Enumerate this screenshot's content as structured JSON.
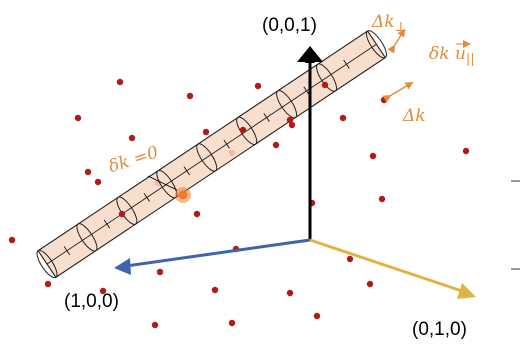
{
  "labels": {
    "axis_z": "(0,0,1)",
    "axis_x": "(1,0,0)",
    "axis_y": "(0,1,0)",
    "delta_k_perp": "Δk",
    "perp_symbol": "⊥",
    "delta_k_dir": "δk u",
    "parallel_symbol": "||",
    "delta_k": "Δk",
    "delta_k_zero": "δk =0"
  },
  "colors": {
    "cylinder_fill": "#f7d9c4",
    "cylinder_stroke": "#222222",
    "points": "#b21a1a",
    "highlight": "#ee7a2e",
    "axis_z": "#000000",
    "axis_x": "#3d64ad",
    "axis_y": "#e0b345",
    "annotation": "#e38a3c"
  }
}
